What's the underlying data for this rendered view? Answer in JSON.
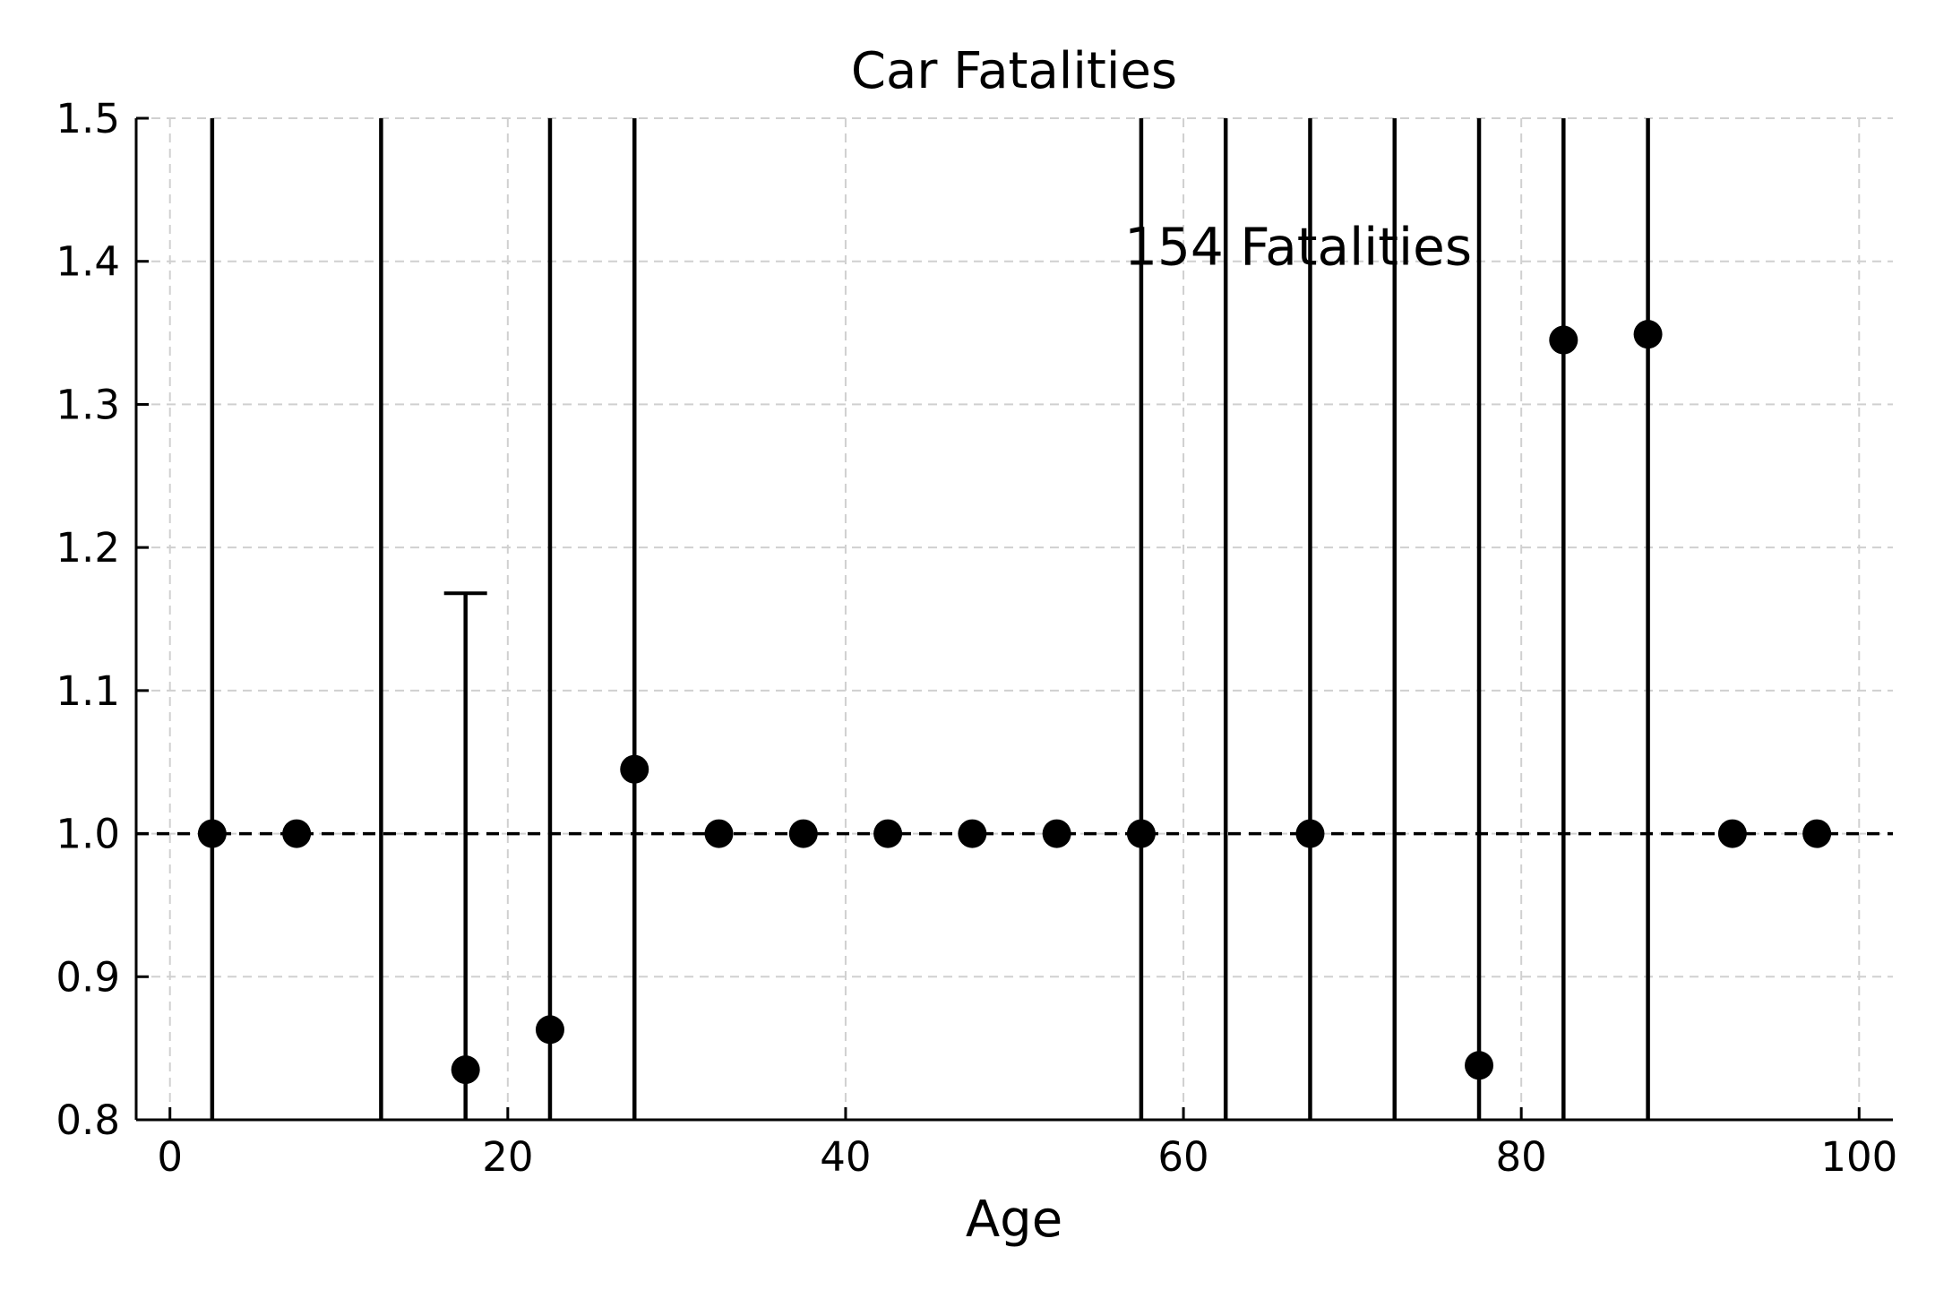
{
  "chart_data": {
    "type": "scatter",
    "title": "Car Fatalities",
    "xlabel": "Age",
    "ylabel": "",
    "xlim": [
      -2,
      102
    ],
    "ylim": [
      0.8,
      1.5
    ],
    "xticks": [
      0,
      20,
      40,
      60,
      80,
      100
    ],
    "yticks": [
      0.8,
      0.9,
      1.0,
      1.1,
      1.2,
      1.3,
      1.4,
      1.5
    ],
    "ytick_labels": [
      "0.8",
      "0.9",
      "1.0",
      "1.1",
      "1.2",
      "1.3",
      "1.4",
      "1.5"
    ],
    "grid": true,
    "reference_line": 1.0,
    "annotation": {
      "text": "154 Fatalities",
      "x": 56.5,
      "y": 1.41
    },
    "points": [
      {
        "x": 2.5,
        "y": 1.0,
        "err_low": 0.8,
        "err_high": 1.5
      },
      {
        "x": 7.5,
        "y": 1.0
      },
      {
        "x": 12.5,
        "y": null,
        "err_low": 0.8,
        "err_high": 1.5
      },
      {
        "x": 17.5,
        "y": 0.835,
        "err_low": 0.8,
        "err_high": 1.168,
        "cap_high": true
      },
      {
        "x": 22.5,
        "y": 0.863,
        "err_low": 0.8,
        "err_high": 1.5
      },
      {
        "x": 27.5,
        "y": 1.045,
        "err_low": 0.8,
        "err_high": 1.5
      },
      {
        "x": 32.5,
        "y": 1.0
      },
      {
        "x": 37.5,
        "y": 1.0
      },
      {
        "x": 42.5,
        "y": 1.0
      },
      {
        "x": 47.5,
        "y": 1.0
      },
      {
        "x": 52.5,
        "y": 1.0
      },
      {
        "x": 57.5,
        "y": 1.0,
        "err_low": 0.8,
        "err_high": 1.5
      },
      {
        "x": 62.5,
        "y": null,
        "err_low": 0.8,
        "err_high": 1.5
      },
      {
        "x": 67.5,
        "y": 1.0,
        "err_low": 0.8,
        "err_high": 1.5
      },
      {
        "x": 72.5,
        "y": null,
        "err_low": 0.8,
        "err_high": 1.5
      },
      {
        "x": 77.5,
        "y": 0.838,
        "err_low": 0.8,
        "err_high": 1.5
      },
      {
        "x": 82.5,
        "y": 1.345,
        "err_low": 0.8,
        "err_high": 1.5
      },
      {
        "x": 87.5,
        "y": 1.349,
        "err_low": 0.8,
        "err_high": 1.5
      },
      {
        "x": 92.5,
        "y": 1.0
      },
      {
        "x": 97.5,
        "y": 1.0
      }
    ]
  }
}
